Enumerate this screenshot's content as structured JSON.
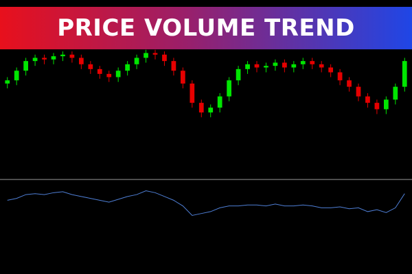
{
  "chart_data": {
    "type": "candlestick",
    "title": "PRICE VOLUME TREND",
    "up_color": "#00e600",
    "down_color": "#e60000",
    "ylim": [
      0,
      110
    ],
    "open": [
      58,
      60,
      66,
      72,
      74,
      73,
      75,
      76,
      74,
      70,
      67,
      64,
      62,
      66,
      70,
      74,
      77,
      76,
      72,
      66,
      58,
      46,
      40,
      43,
      50,
      60,
      67,
      70,
      68,
      69,
      71,
      68,
      70,
      72,
      70,
      68,
      65,
      60,
      56,
      50,
      46,
      42,
      48,
      56
    ],
    "high": [
      62,
      68,
      74,
      76,
      76,
      77,
      78,
      78,
      76,
      72,
      69,
      66,
      68,
      72,
      76,
      79,
      79,
      78,
      74,
      68,
      60,
      48,
      45,
      52,
      62,
      69,
      72,
      72,
      71,
      73,
      73,
      72,
      74,
      74,
      72,
      70,
      67,
      62,
      58,
      52,
      48,
      50,
      58,
      74
    ],
    "low": [
      55,
      57,
      63,
      69,
      70,
      70,
      72,
      71,
      67,
      64,
      61,
      59,
      59,
      63,
      67,
      71,
      73,
      69,
      63,
      55,
      43,
      37,
      37,
      40,
      47,
      57,
      64,
      65,
      65,
      66,
      65,
      65,
      67,
      67,
      65,
      62,
      57,
      53,
      47,
      43,
      39,
      39,
      45,
      53
    ],
    "close": [
      60,
      66,
      72,
      74,
      73,
      75,
      76,
      74,
      70,
      67,
      64,
      62,
      66,
      70,
      74,
      77,
      76,
      72,
      66,
      58,
      46,
      40,
      43,
      50,
      60,
      67,
      70,
      68,
      69,
      71,
      68,
      70,
      72,
      70,
      68,
      65,
      60,
      56,
      50,
      46,
      42,
      48,
      56,
      72
    ],
    "indicator": {
      "color": "#4f7fd6",
      "ylim": [
        0,
        100
      ],
      "values": [
        78,
        80,
        84,
        85,
        84,
        86,
        87,
        84,
        82,
        80,
        78,
        76,
        79,
        82,
        84,
        88,
        86,
        82,
        78,
        72,
        62,
        64,
        66,
        70,
        72,
        72,
        73,
        73,
        72,
        74,
        72,
        72,
        73,
        72,
        70,
        70,
        71,
        69,
        70,
        66,
        68,
        65,
        70,
        85
      ]
    }
  }
}
